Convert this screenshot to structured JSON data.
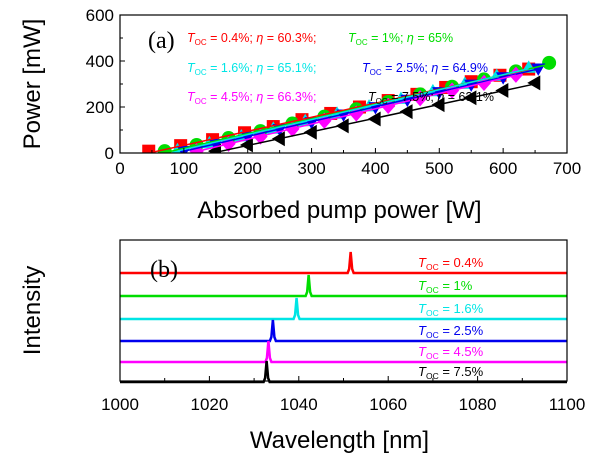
{
  "chart_data": [
    {
      "type": "scatter",
      "panel_label": "(a)",
      "xlabel": "Absorbed pump power [W]",
      "ylabel": "Power [mW]",
      "xlim": [
        0,
        700
      ],
      "ylim": [
        0,
        600
      ],
      "xticks": [
        "0",
        "100",
        "200",
        "300",
        "400",
        "500",
        "600",
        "700"
      ],
      "yticks": [
        "0",
        "200",
        "400",
        "600"
      ],
      "legend_placement": "top",
      "series": [
        {
          "name": "0.4%",
          "eta": "60.3%",
          "color": "#ff0000",
          "marker": "square",
          "x": [
            45,
            95,
            145,
            195,
            240,
            285,
            330,
            375,
            420,
            465,
            510,
            550,
            595,
            640
          ],
          "y": [
            8,
            32,
            58,
            88,
            115,
            145,
            172,
            200,
            228,
            255,
            285,
            310,
            338,
            365
          ]
        },
        {
          "name": "1%",
          "eta": "65%",
          "color": "#00dd00",
          "marker": "circle",
          "x": [
            70,
            120,
            170,
            220,
            270,
            320,
            370,
            420,
            470,
            520,
            570,
            620,
            672
          ],
          "y": [
            8,
            35,
            65,
            95,
            128,
            158,
            190,
            222,
            255,
            288,
            320,
            355,
            392
          ]
        },
        {
          "name": "1.6%",
          "eta": "65.1%",
          "color": "#00e5e5",
          "marker": "triangle-up",
          "x": [
            90,
            140,
            190,
            240,
            290,
            340,
            390,
            440,
            490,
            540,
            590,
            640
          ],
          "y": [
            12,
            42,
            72,
            105,
            138,
            170,
            202,
            235,
            268,
            300,
            335,
            370
          ]
        },
        {
          "name": "2.5%",
          "eta": "64.9%",
          "color": "#0000ee",
          "marker": "triangle-down",
          "x": [
            100,
            150,
            200,
            250,
            300,
            350,
            400,
            450,
            500,
            550,
            600,
            655
          ],
          "y": [
            10,
            40,
            72,
            105,
            135,
            168,
            200,
            232,
            265,
            298,
            330,
            368
          ]
        },
        {
          "name": "4.5%",
          "eta": "66.3%",
          "color": "#ff00ff",
          "marker": "diamond",
          "x": [
            120,
            170,
            220,
            270,
            320,
            370,
            420,
            470,
            520,
            570,
            620
          ],
          "y": [
            8,
            40,
            72,
            105,
            140,
            172,
            205,
            238,
            272,
            305,
            340
          ]
        },
        {
          "name": "7.5%",
          "eta": "63.1%",
          "color": "#000000",
          "marker": "triangle-left",
          "x": [
            150,
            200,
            250,
            300,
            350,
            400,
            450,
            500,
            550,
            600,
            650
          ],
          "y": [
            8,
            35,
            62,
            90,
            118,
            148,
            180,
            210,
            240,
            272,
            305
          ]
        }
      ]
    },
    {
      "type": "line",
      "panel_label": "(b)",
      "xlabel": "Wavelength [nm]",
      "ylabel": "Intensity",
      "xlim": [
        1000,
        1100
      ],
      "xticks": [
        "1000",
        "1020",
        "1040",
        "1060",
        "1080",
        "1100"
      ],
      "series": [
        {
          "name": "0.4%",
          "color": "#ff0000",
          "peak": 1051.6
        },
        {
          "name": "1%",
          "color": "#00dd00",
          "peak": 1042.2
        },
        {
          "name": "1.6%",
          "color": "#00e5e5",
          "peak": 1039.5
        },
        {
          "name": "2.5%",
          "color": "#0000ee",
          "peak": 1034.2
        },
        {
          "name": "4.5%",
          "color": "#ff00ff",
          "peak": 1033.2
        },
        {
          "name": "7.5%",
          "color": "#000000",
          "peak": 1032.8
        }
      ]
    }
  ],
  "legend_text": {
    "toc_symbol": "T",
    "toc_sub": "OC",
    "eq": " = ",
    "eta_symbol": "η",
    "sep": "; ",
    "comma": ", "
  }
}
